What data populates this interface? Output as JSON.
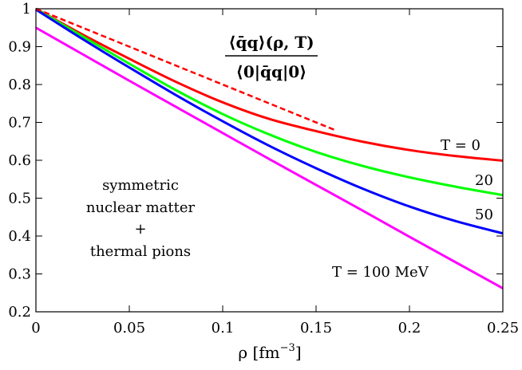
{
  "chart_data": {
    "type": "line",
    "title_numerator": "⟨q̄q⟩(ρ, T)",
    "title_denominator": "⟨0|q̄q|0⟩",
    "xlabel": "ρ [fm",
    "xlabel_exp": "−3",
    "xlabel_close": "]",
    "ylabel": "",
    "xlim": [
      0,
      0.25
    ],
    "ylim": [
      0.2,
      1.0
    ],
    "xticks": [
      0,
      0.05,
      0.1,
      0.15,
      0.2,
      0.25
    ],
    "xtick_labels": [
      "0",
      "0.05",
      "0.1",
      "0.15",
      "0.2",
      "0.25"
    ],
    "yticks": [
      0.2,
      0.3,
      0.4,
      0.5,
      0.6,
      0.7,
      0.8,
      0.9,
      1.0
    ],
    "ytick_labels": [
      "0.2",
      "0.3",
      "0.4",
      "0.5",
      "0.6",
      "0.7",
      "0.8",
      "0.9",
      "1"
    ],
    "x": [
      0,
      0.025,
      0.05,
      0.075,
      0.1,
      0.125,
      0.15,
      0.175,
      0.2,
      0.225,
      0.25
    ],
    "series": [
      {
        "name": "T = 0",
        "color": "#ff0000",
        "style": "solid",
        "values": [
          1.0,
          0.932,
          0.868,
          0.807,
          0.753,
          0.709,
          0.677,
          0.649,
          0.627,
          0.611,
          0.599
        ]
      },
      {
        "name": "T = 20",
        "color": "#00ff00",
        "style": "solid",
        "values": [
          1.0,
          0.927,
          0.855,
          0.785,
          0.722,
          0.668,
          0.622,
          0.585,
          0.555,
          0.53,
          0.508
        ]
      },
      {
        "name": "T = 50",
        "color": "#0000ff",
        "style": "solid",
        "values": [
          0.998,
          0.92,
          0.845,
          0.772,
          0.703,
          0.638,
          0.579,
          0.525,
          0.478,
          0.439,
          0.407
        ]
      },
      {
        "name": "T = 100 MeV",
        "color": "#ff00ff",
        "style": "solid",
        "values": [
          0.95,
          0.88,
          0.81,
          0.741,
          0.672,
          0.603,
          0.535,
          0.467,
          0.398,
          0.33,
          0.262
        ]
      },
      {
        "name": "linear density approximation",
        "color": "#ff0000",
        "style": "dashed",
        "x": [
          0,
          0.16
        ],
        "values": [
          1.0,
          0.68
        ]
      }
    ],
    "annotations": {
      "t0": "T = 0",
      "t20": "20",
      "t50": "50",
      "t100": "T = 100 MeV",
      "matter_line1": "symmetric",
      "matter_line2": "nuclear matter",
      "matter_plus": "+",
      "matter_line3": "thermal pions"
    },
    "grid": false
  }
}
